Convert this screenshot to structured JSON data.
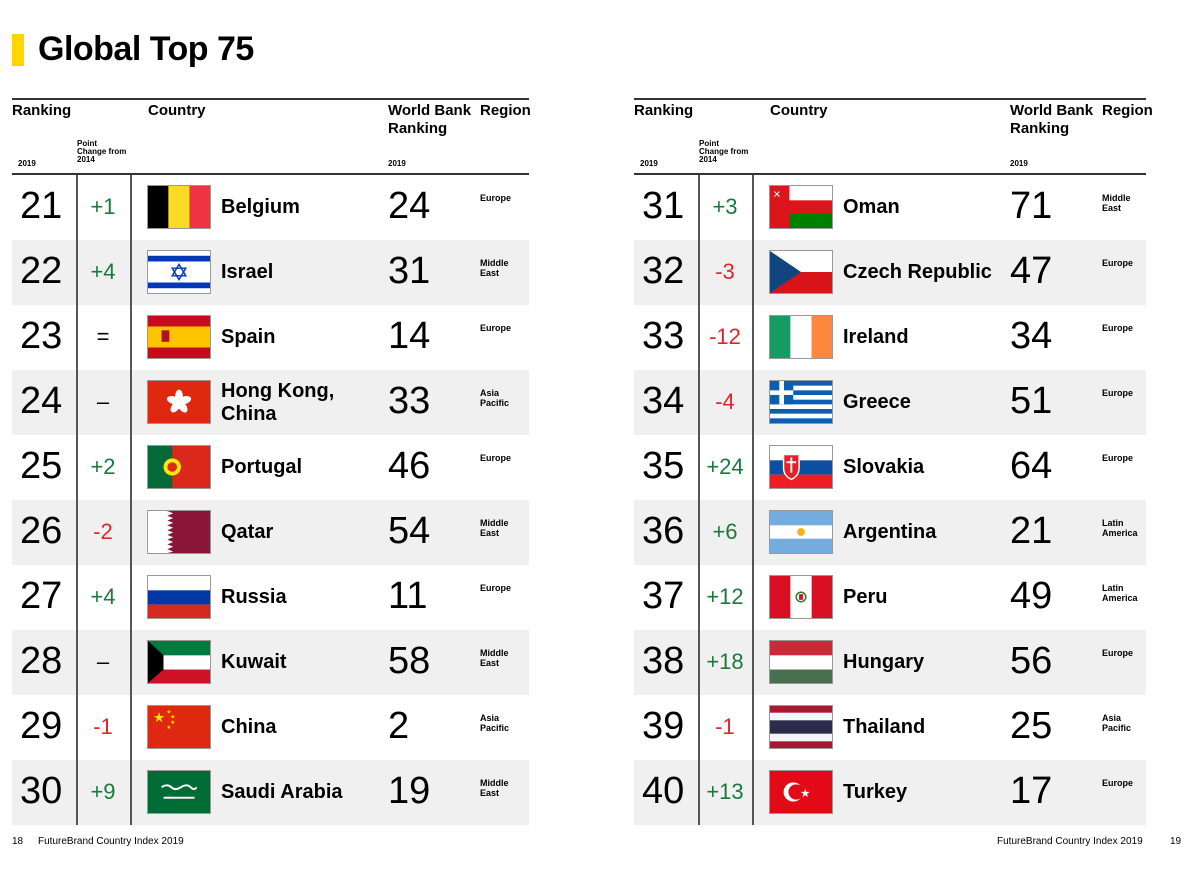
{
  "title": "Global Top 75",
  "brand_color": "#ffd500",
  "colors": {
    "positive": "#1a7a3a",
    "negative": "#e0252d"
  },
  "headers": {
    "ranking": "Ranking",
    "year": "2019",
    "point_change": "Point Change from 2014",
    "country": "Country",
    "world_bank": "World Bank Ranking",
    "region": "Region"
  },
  "footer": {
    "left_page": "18",
    "left_text": "FutureBrand Country Index 2019",
    "right_text": "FutureBrand Country Index 2019",
    "right_page": "19"
  },
  "tables": [
    {
      "rows": [
        {
          "rank": "21",
          "change": "+1",
          "flag": "belgium-flag-icon",
          "country": "Belgium",
          "wb": "24",
          "region": "Europe"
        },
        {
          "rank": "22",
          "change": "+4",
          "flag": "israel-flag-icon",
          "country": "Israel",
          "wb": "31",
          "region": "Middle East"
        },
        {
          "rank": "23",
          "change": "=",
          "flag": "spain-flag-icon",
          "country": "Spain",
          "wb": "14",
          "region": "Europe"
        },
        {
          "rank": "24",
          "change": "–",
          "flag": "hongkong-flag-icon",
          "country": "Hong Kong, China",
          "wb": "33",
          "region": "Asia Pacific"
        },
        {
          "rank": "25",
          "change": "+2",
          "flag": "portugal-flag-icon",
          "country": "Portugal",
          "wb": "46",
          "region": "Europe"
        },
        {
          "rank": "26",
          "change": "-2",
          "flag": "qatar-flag-icon",
          "country": "Qatar",
          "wb": "54",
          "region": "Middle East"
        },
        {
          "rank": "27",
          "change": "+4",
          "flag": "russia-flag-icon",
          "country": "Russia",
          "wb": "11",
          "region": "Europe"
        },
        {
          "rank": "28",
          "change": "–",
          "flag": "kuwait-flag-icon",
          "country": "Kuwait",
          "wb": "58",
          "region": "Middle East"
        },
        {
          "rank": "29",
          "change": "-1",
          "flag": "china-flag-icon",
          "country": "China",
          "wb": "2",
          "region": "Asia Pacific"
        },
        {
          "rank": "30",
          "change": "+9",
          "flag": "saudi-flag-icon",
          "country": "Saudi Arabia",
          "wb": "19",
          "region": "Middle East"
        }
      ]
    },
    {
      "rows": [
        {
          "rank": "31",
          "change": "+3",
          "flag": "oman-flag-icon",
          "country": "Oman",
          "wb": "71",
          "region": "Middle East"
        },
        {
          "rank": "32",
          "change": "-3",
          "flag": "czech-flag-icon",
          "country": "Czech Republic",
          "wb": "47",
          "region": "Europe"
        },
        {
          "rank": "33",
          "change": "-12",
          "flag": "ireland-flag-icon",
          "country": "Ireland",
          "wb": "34",
          "region": "Europe"
        },
        {
          "rank": "34",
          "change": "-4",
          "flag": "greece-flag-icon",
          "country": "Greece",
          "wb": "51",
          "region": "Europe"
        },
        {
          "rank": "35",
          "change": "+24",
          "flag": "slovakia-flag-icon",
          "country": "Slovakia",
          "wb": "64",
          "region": "Europe"
        },
        {
          "rank": "36",
          "change": "+6",
          "flag": "argentina-flag-icon",
          "country": "Argentina",
          "wb": "21",
          "region": "Latin America"
        },
        {
          "rank": "37",
          "change": "+12",
          "flag": "peru-flag-icon",
          "country": "Peru",
          "wb": "49",
          "region": "Latin America"
        },
        {
          "rank": "38",
          "change": "+18",
          "flag": "hungary-flag-icon",
          "country": "Hungary",
          "wb": "56",
          "region": "Europe"
        },
        {
          "rank": "39",
          "change": "-1",
          "flag": "thailand-flag-icon",
          "country": "Thailand",
          "wb": "25",
          "region": "Asia Pacific"
        },
        {
          "rank": "40",
          "change": "+13",
          "flag": "turkey-flag-icon",
          "country": "Turkey",
          "wb": "17",
          "region": "Europe"
        }
      ]
    }
  ]
}
